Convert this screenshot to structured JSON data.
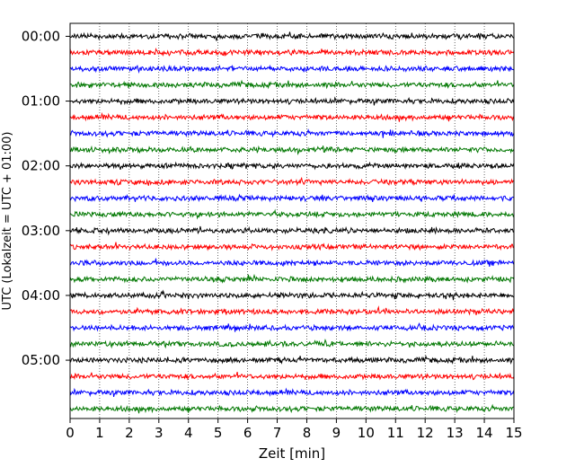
{
  "chart_data": {
    "type": "line",
    "title": "",
    "xlabel": "Zeit  [min]",
    "ylabel": "UTC (Lokalzeit = UTC + 01:00)",
    "xlim": [
      0,
      15
    ],
    "x_ticks": [
      0,
      1,
      2,
      3,
      4,
      5,
      6,
      7,
      8,
      9,
      10,
      11,
      12,
      13,
      14,
      15
    ],
    "x_tick_labels": [
      "0",
      "1",
      "2",
      "3",
      "4",
      "5",
      "6",
      "7",
      "8",
      "9",
      "10",
      "11",
      "12",
      "13",
      "14",
      "15"
    ],
    "y_tick_labels": [
      "00:00",
      "01:00",
      "02:00",
      "03:00",
      "04:00",
      "05:00"
    ],
    "grid": "vertical dotted",
    "trace_duration_min": 15,
    "traces_per_hour": 4,
    "series": [
      {
        "start": "00:00",
        "color": "#000000"
      },
      {
        "start": "00:15",
        "color": "#ff0000"
      },
      {
        "start": "00:30",
        "color": "#0000ff"
      },
      {
        "start": "00:45",
        "color": "#007700"
      },
      {
        "start": "01:00",
        "color": "#000000"
      },
      {
        "start": "01:15",
        "color": "#ff0000"
      },
      {
        "start": "01:30",
        "color": "#0000ff"
      },
      {
        "start": "01:45",
        "color": "#007700"
      },
      {
        "start": "02:00",
        "color": "#000000"
      },
      {
        "start": "02:15",
        "color": "#ff0000"
      },
      {
        "start": "02:30",
        "color": "#0000ff"
      },
      {
        "start": "02:45",
        "color": "#007700"
      },
      {
        "start": "03:00",
        "color": "#000000"
      },
      {
        "start": "03:15",
        "color": "#ff0000"
      },
      {
        "start": "03:30",
        "color": "#0000ff"
      },
      {
        "start": "03:45",
        "color": "#007700"
      },
      {
        "start": "04:00",
        "color": "#000000"
      },
      {
        "start": "04:15",
        "color": "#ff0000"
      },
      {
        "start": "04:30",
        "color": "#0000ff"
      },
      {
        "start": "04:45",
        "color": "#007700"
      },
      {
        "start": "05:00",
        "color": "#000000"
      },
      {
        "start": "05:15",
        "color": "#ff0000"
      },
      {
        "start": "05:30",
        "color": "#0000ff"
      },
      {
        "start": "05:45",
        "color": "#007700"
      }
    ]
  }
}
